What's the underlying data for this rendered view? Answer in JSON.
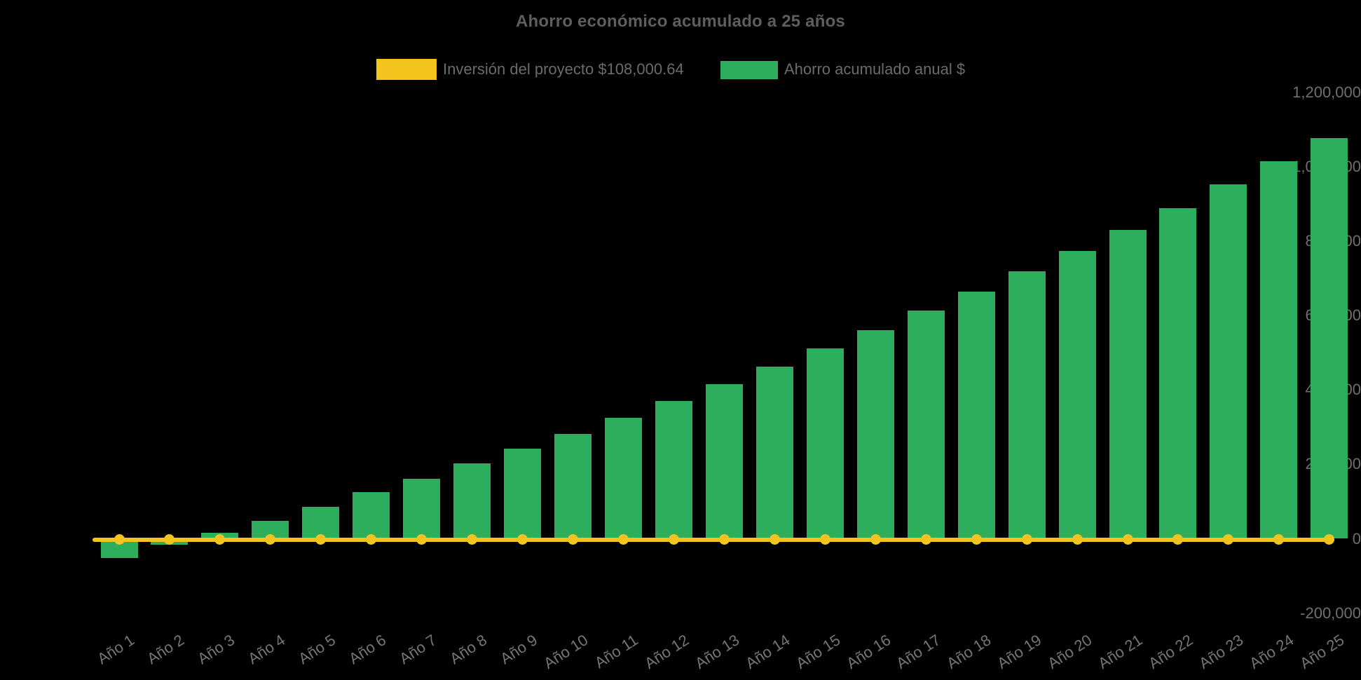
{
  "title": "Ahorro económico acumulado a 25 años",
  "colors": {
    "background": "#000000",
    "investment_yellow": "#F2C41D",
    "savings_green": "#2DAE5D",
    "title_text": "#5E5E5E",
    "axis_text": "#6F6F6F"
  },
  "legend": {
    "position": "top-center",
    "items": [
      {
        "label": "Inversión del proyecto $108,000.64",
        "color": "#F2C41D",
        "series_type": "line"
      },
      {
        "label": "Ahorro acumulado anual $",
        "color": "#2DAE5D",
        "series_type": "bar"
      }
    ]
  },
  "chart_data": {
    "type": "bar",
    "title": "Ahorro económico acumulado a 25 años",
    "xlabel": "",
    "ylabel": "",
    "grid": false,
    "legend_position": "top",
    "ylim": [
      -200000,
      1200000
    ],
    "yticks": [
      -200000,
      0,
      200000,
      400000,
      600000,
      800000,
      1000000,
      1200000
    ],
    "categories": [
      "Año 1",
      "Año 2",
      "Año 3",
      "Año 4",
      "Año 5",
      "Año 6",
      "Año 7",
      "Año 8",
      "Año 9",
      "Año 10",
      "Año 11",
      "Año 12",
      "Año 13",
      "Año 14",
      "Año 15",
      "Año 16",
      "Año 17",
      "Año 18",
      "Año 19",
      "Año 20",
      "Año 21",
      "Año 22",
      "Año 23",
      "Año 24",
      "Año 25"
    ],
    "series": [
      {
        "name": "Inversión del proyecto $108,000.64",
        "type": "line",
        "color": "#F2C41D",
        "marker": "circle",
        "values": [
          0,
          0,
          0,
          0,
          0,
          0,
          0,
          0,
          0,
          0,
          0,
          0,
          0,
          0,
          0,
          0,
          0,
          0,
          0,
          0,
          0,
          0,
          0,
          0,
          0
        ]
      },
      {
        "name": "Ahorro acumulado anual $",
        "type": "bar",
        "color": "#2DAE5D",
        "values": [
          -51000,
          -16000,
          16000,
          49000,
          85000,
          125000,
          162000,
          202000,
          242000,
          282000,
          325000,
          371000,
          415000,
          462000,
          511000,
          561000,
          613000,
          665000,
          719000,
          774000,
          831000,
          889000,
          952000,
          1015000,
          1078000
        ]
      }
    ]
  }
}
